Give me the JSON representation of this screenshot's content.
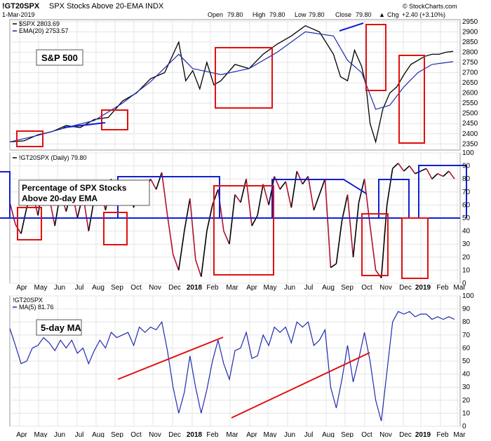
{
  "header": {
    "symbol": "!GT20SPX",
    "description": "SPX Stocks Above 20-EMA  INDX",
    "date": "1-Mar-2019",
    "open_label": "Open",
    "open": "79.80",
    "high_label": "High",
    "high": "79.80",
    "low_label": "Low",
    "low": "79.80",
    "close_label": "Close",
    "close": "79.80",
    "chg_label": "Chg",
    "chg": "+2.40 (+3.10%)",
    "watermark": "© StockCharts.com",
    "up_arrow": "▲"
  },
  "panels": {
    "top": {
      "legend_series": "$SPX 2803.69",
      "legend_ema": "EMA(20) 2753.57",
      "annotation": "S&P 500"
    },
    "middle": {
      "legend_series": "!GT20SPX (Daily) 79.80",
      "annotation_line1": "Percentage of SPX Stocks",
      "annotation_line2": "Above 20-day EMA"
    },
    "bottom": {
      "legend_series": "!GT20SPX",
      "legend_ma": "MA(5) 81.76",
      "annotation": "5-day MA"
    }
  },
  "x_labels": [
    "Apr",
    "May",
    "Jun",
    "Jul",
    "Aug",
    "Sep",
    "Oct",
    "Nov",
    "Dec",
    "2018",
    "Feb",
    "Mar",
    "Apr",
    "May",
    "Jun",
    "Jul",
    "Aug",
    "Sep",
    "Oct",
    "Nov",
    "Dec",
    "2019",
    "Feb",
    "Mar"
  ],
  "colors": {
    "price": "#000000",
    "ema": "#1f2bb0",
    "breadth_up": "#000000",
    "breadth_down": "#b0102c",
    "ma_line": "#1f2bb0",
    "box_red": "#e01010",
    "box_blue": "#1020d0",
    "trend_red": "#e01010"
  },
  "chart_data": [
    {
      "type": "line",
      "title": "$SPX",
      "series": [
        {
          "name": "$SPX",
          "x": [
            0,
            20,
            40,
            60,
            80,
            100,
            120,
            140,
            160,
            180,
            200,
            220,
            240,
            250,
            260,
            270,
            280,
            290,
            300,
            320,
            340,
            360,
            380,
            400,
            420,
            440,
            460,
            470,
            480,
            490,
            500,
            506,
            512,
            520,
            530,
            540,
            550,
            560,
            570,
            580,
            590,
            600,
            610,
            620,
            630
          ],
          "values": [
            2360,
            2365,
            2395,
            2410,
            2440,
            2430,
            2470,
            2480,
            2560,
            2600,
            2670,
            2700,
            2850,
            2660,
            2710,
            2620,
            2750,
            2640,
            2660,
            2740,
            2720,
            2790,
            2840,
            2880,
            2930,
            2900,
            2790,
            2680,
            2660,
            2810,
            2730,
            2640,
            2450,
            2360,
            2520,
            2600,
            2630,
            2690,
            2740,
            2760,
            2780,
            2790,
            2790,
            2800,
            2804
          ]
        },
        {
          "name": "EMA(20)",
          "x": [
            0,
            40,
            80,
            120,
            160,
            200,
            240,
            260,
            280,
            300,
            340,
            380,
            420,
            460,
            480,
            500,
            520,
            540,
            560,
            580,
            600,
            630
          ],
          "values": [
            2360,
            2392,
            2430,
            2465,
            2550,
            2655,
            2790,
            2720,
            2705,
            2690,
            2720,
            2800,
            2900,
            2880,
            2760,
            2700,
            2520,
            2540,
            2630,
            2700,
            2740,
            2754
          ]
        }
      ],
      "ylim": [
        2320,
        2960
      ],
      "y_ticks": [
        2350,
        2400,
        2450,
        2500,
        2550,
        2600,
        2650,
        2700,
        2750,
        2800,
        2850,
        2900,
        2950
      ]
    },
    {
      "type": "line",
      "title": "!GT20SPX (Daily)",
      "series": [
        {
          "name": "!GT20SPX (Daily)",
          "x": [
            0,
            8,
            16,
            24,
            32,
            40,
            48,
            56,
            64,
            72,
            80,
            88,
            96,
            104,
            112,
            120,
            128,
            136,
            144,
            152,
            160,
            168,
            176,
            184,
            192,
            200,
            208,
            216,
            224,
            232,
            240,
            248,
            256,
            264,
            272,
            280,
            288,
            296,
            304,
            312,
            320,
            328,
            336,
            344,
            352,
            360,
            368,
            376,
            384,
            392,
            400,
            408,
            416,
            424,
            432,
            440,
            448,
            456,
            464,
            472,
            480,
            488,
            496,
            504,
            512,
            520,
            528,
            536,
            544,
            552,
            560,
            568,
            576,
            584,
            592,
            600,
            608,
            616,
            624,
            632
          ],
          "values": [
            62,
            45,
            38,
            58,
            70,
            52,
            78,
            66,
            44,
            70,
            55,
            72,
            50,
            68,
            40,
            65,
            72,
            56,
            80,
            66,
            70,
            74,
            58,
            78,
            70,
            80,
            72,
            85,
            52,
            22,
            10,
            40,
            65,
            18,
            5,
            40,
            60,
            72,
            40,
            30,
            68,
            62,
            80,
            44,
            52,
            76,
            60,
            82,
            72,
            78,
            58,
            86,
            76,
            82,
            56,
            68,
            80,
            12,
            15,
            48,
            68,
            20,
            62,
            80,
            44,
            10,
            4,
            60,
            88,
            92,
            86,
            90,
            84,
            86,
            88,
            80,
            84,
            82,
            86,
            80
          ]
        }
      ],
      "ylim": [
        0,
        100
      ],
      "y_ticks": [
        0,
        10,
        20,
        30,
        40,
        50,
        60,
        70,
        80,
        90,
        100
      ]
    },
    {
      "type": "line",
      "title": "!GT20SPX",
      "series": [
        {
          "name": "MA(5)",
          "x": [
            0,
            8,
            16,
            24,
            32,
            40,
            48,
            56,
            64,
            72,
            80,
            88,
            96,
            104,
            112,
            120,
            128,
            136,
            144,
            152,
            160,
            168,
            176,
            184,
            192,
            200,
            208,
            216,
            224,
            232,
            240,
            248,
            256,
            264,
            272,
            280,
            288,
            296,
            304,
            312,
            320,
            328,
            336,
            344,
            352,
            360,
            368,
            376,
            384,
            392,
            400,
            408,
            416,
            424,
            432,
            440,
            448,
            456,
            464,
            472,
            480,
            488,
            496,
            504,
            512,
            520,
            528,
            536,
            544,
            552,
            560,
            568,
            576,
            584,
            592,
            600,
            608,
            616,
            624,
            632
          ],
          "values": [
            75,
            62,
            48,
            50,
            60,
            62,
            68,
            64,
            58,
            66,
            60,
            66,
            56,
            60,
            48,
            58,
            66,
            60,
            72,
            68,
            70,
            72,
            62,
            76,
            72,
            76,
            74,
            80,
            58,
            30,
            10,
            26,
            54,
            30,
            10,
            28,
            50,
            66,
            48,
            36,
            58,
            60,
            72,
            52,
            54,
            70,
            62,
            76,
            72,
            76,
            64,
            80,
            76,
            80,
            62,
            66,
            74,
            30,
            14,
            36,
            62,
            34,
            52,
            72,
            50,
            20,
            4,
            42,
            80,
            88,
            86,
            88,
            84,
            86,
            86,
            82,
            84,
            82,
            84,
            82
          ]
        }
      ],
      "ylim": [
        0,
        100
      ],
      "y_ticks": [
        0,
        10,
        20,
        30,
        40,
        50,
        60,
        70,
        80,
        90,
        100
      ]
    }
  ]
}
